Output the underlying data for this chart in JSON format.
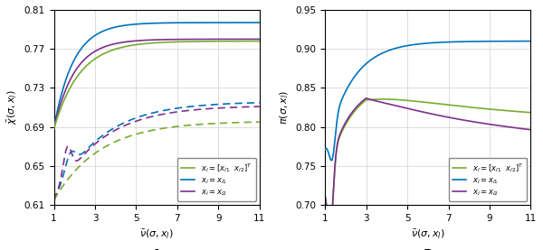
{
  "color_green": "#77AC30",
  "color_blue": "#0072BD",
  "color_purple": "#7E2F8E",
  "xlabel": "$\\bar{\\nu}(\\sigma, x_l)$",
  "ylabel_A": "$\\bar{\\chi}(\\sigma, x_l)$",
  "ylabel_B": "$\\pi(\\sigma, x_l)$",
  "label_A": "A",
  "label_B": "B",
  "legend_1": "$x_l = [x_{l1}~~ x_{l2}]^T$",
  "legend_2": "$x_l = x_{l1}$",
  "legend_3": "$x_l = x_{l2}$",
  "xlim": [
    1,
    11
  ],
  "ylim_A": [
    0.61,
    0.81
  ],
  "ylim_B": [
    0.7,
    0.95
  ],
  "yticks_A": [
    0.61,
    0.65,
    0.69,
    0.73,
    0.77,
    0.81
  ],
  "yticks_B": [
    0.7,
    0.75,
    0.8,
    0.85,
    0.9,
    0.95
  ],
  "xticks": [
    1,
    3,
    5,
    7,
    9,
    11
  ]
}
